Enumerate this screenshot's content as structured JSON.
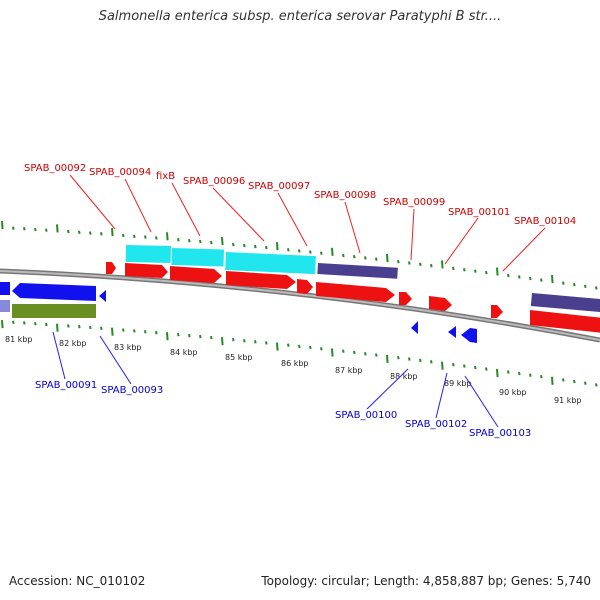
{
  "title": "Salmonella enterica subsp. enterica serovar Paratyphi B str....",
  "footer": {
    "accession": "Accession: NC_010102",
    "summary": "Topology: circular; Length: 4,858,887 bp; Genes: 5,740"
  },
  "colors": {
    "forward_label": "#cc0000",
    "reverse_label": "#0000cc",
    "cds_forward": "#ee1111",
    "cds_reverse": "#1111ee",
    "gene_cyan": "#22e6ee",
    "gene_purple": "#4a3f8f",
    "gene_olive": "#6b8e23",
    "tick": "#228b22",
    "backbone": "#888888"
  },
  "scale_labels": [
    "81 kbp",
    "82 kbp",
    "83 kbp",
    "84 kbp",
    "85 kbp",
    "86 kbp",
    "87 kbp",
    "88 kbp",
    "89 kbp",
    "90 kbp",
    "91 kbp"
  ],
  "forward_labels": [
    "SPAB_00092",
    "SPAB_00094",
    "fixB",
    "SPAB_00096",
    "SPAB_00097",
    "SPAB_00098",
    "SPAB_00099",
    "SPAB_00101",
    "SPAB_00104"
  ],
  "reverse_labels": [
    "SPAB_00091",
    "SPAB_00093",
    "SPAB_00100",
    "SPAB_00102",
    "SPAB_00103"
  ]
}
